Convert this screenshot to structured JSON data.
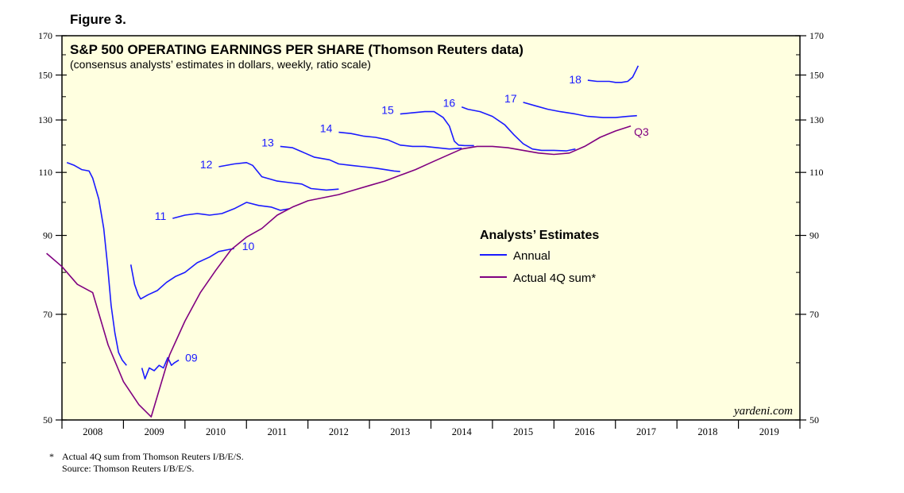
{
  "figure_label": "Figure 3.",
  "footnotes": {
    "note_marker": "*",
    "note": "Actual 4Q sum from Thomson Reuters I/B/E/S.",
    "source": "Source: Thomson Reuters I/B/E/S."
  },
  "colors": {
    "annual": "#1a1aff",
    "actual": "#800080",
    "plot_background": "#ffffe0",
    "axis": "#000000"
  },
  "chart_data": {
    "type": "line",
    "title": "S&P 500 OPERATING EARNINGS PER SHARE (Thomson Reuters data)",
    "subtitle": "(consensus analysts’ estimates in dollars, weekly, ratio scale)",
    "watermark": "yardeni.com",
    "y_scale": "log",
    "ylim": [
      50,
      170
    ],
    "xlim": [
      2008.0,
      2020.0
    ],
    "y_ticks": [
      50,
      70,
      90,
      110,
      130,
      150,
      170
    ],
    "y_tick_labels": [
      "50",
      "70",
      "90",
      "110",
      "130",
      "150",
      "170"
    ],
    "x_tick_labels": [
      "2008",
      "2009",
      "2010",
      "2011",
      "2012",
      "2013",
      "2014",
      "2015",
      "2016",
      "2017",
      "2018",
      "2019"
    ],
    "legend": {
      "title": "Analysts’ Estimates",
      "placement": "center-right",
      "entries": [
        {
          "name": "Annual",
          "series": "annual"
        },
        {
          "name": "Actual 4Q sum*",
          "series": "actual"
        }
      ]
    },
    "series": [
      {
        "name": "09",
        "kind": "annual",
        "label": "09",
        "points": [
          [
            2009.3,
            59.0
          ],
          [
            2009.35,
            57.0
          ],
          [
            2009.42,
            59.0
          ],
          [
            2009.5,
            58.5
          ],
          [
            2009.58,
            59.5
          ],
          [
            2009.65,
            59.0
          ],
          [
            2009.72,
            61.0
          ],
          [
            2009.78,
            59.5
          ],
          [
            2009.83,
            60.0
          ],
          [
            2009.9,
            60.5
          ]
        ]
      },
      {
        "name": "2009",
        "kind": "annual",
        "points": [
          [
            2008.08,
            113.5
          ],
          [
            2008.2,
            112.5
          ],
          [
            2008.32,
            111.0
          ],
          [
            2008.44,
            110.5
          ],
          [
            2008.5,
            108.0
          ],
          [
            2008.6,
            101.0
          ],
          [
            2008.68,
            92.0
          ],
          [
            2008.74,
            82.0
          ],
          [
            2008.8,
            72.0
          ],
          [
            2008.86,
            66.0
          ],
          [
            2008.92,
            62.0
          ],
          [
            2008.98,
            60.5
          ],
          [
            2009.05,
            59.5
          ]
        ]
      },
      {
        "name": "2010",
        "kind": "annual",
        "label": "10",
        "points": [
          [
            2009.12,
            82.0
          ],
          [
            2009.18,
            77.0
          ],
          [
            2009.24,
            74.5
          ],
          [
            2009.28,
            73.5
          ],
          [
            2009.4,
            74.5
          ],
          [
            2009.55,
            75.5
          ],
          [
            2009.7,
            77.5
          ],
          [
            2009.85,
            79.0
          ],
          [
            2010.0,
            80.0
          ],
          [
            2010.2,
            82.5
          ],
          [
            2010.4,
            84.0
          ],
          [
            2010.55,
            85.5
          ],
          [
            2010.7,
            86.0
          ],
          [
            2010.8,
            86.3
          ]
        ]
      },
      {
        "name": "2011",
        "kind": "annual",
        "label": "11",
        "points": [
          [
            2009.8,
            95.0
          ],
          [
            2010.0,
            96.0
          ],
          [
            2010.2,
            96.5
          ],
          [
            2010.4,
            96.0
          ],
          [
            2010.6,
            96.5
          ],
          [
            2010.8,
            98.0
          ],
          [
            2011.0,
            100.0
          ],
          [
            2011.2,
            99.0
          ],
          [
            2011.4,
            98.5
          ],
          [
            2011.55,
            97.5
          ],
          [
            2011.7,
            98.0
          ]
        ]
      },
      {
        "name": "2012",
        "kind": "annual",
        "label": "12",
        "points": [
          [
            2010.55,
            112.0
          ],
          [
            2010.8,
            113.0
          ],
          [
            2011.0,
            113.5
          ],
          [
            2011.1,
            112.5
          ],
          [
            2011.25,
            108.5
          ],
          [
            2011.5,
            107.0
          ],
          [
            2011.7,
            106.5
          ],
          [
            2011.9,
            106.0
          ],
          [
            2012.05,
            104.5
          ],
          [
            2012.3,
            104.0
          ],
          [
            2012.5,
            104.3
          ]
        ]
      },
      {
        "name": "2013",
        "kind": "annual",
        "label": "13",
        "points": [
          [
            2011.55,
            119.5
          ],
          [
            2011.75,
            119.0
          ],
          [
            2011.95,
            117.0
          ],
          [
            2012.1,
            115.5
          ],
          [
            2012.35,
            114.5
          ],
          [
            2012.5,
            113.0
          ],
          [
            2012.7,
            112.5
          ],
          [
            2012.9,
            112.0
          ],
          [
            2013.1,
            111.5
          ],
          [
            2013.25,
            111.0
          ],
          [
            2013.4,
            110.5
          ],
          [
            2013.5,
            110.3
          ]
        ]
      },
      {
        "name": "2014",
        "kind": "annual",
        "label": "14",
        "points": [
          [
            2012.5,
            125.0
          ],
          [
            2012.7,
            124.5
          ],
          [
            2012.9,
            123.5
          ],
          [
            2013.1,
            123.0
          ],
          [
            2013.3,
            122.0
          ],
          [
            2013.5,
            120.0
          ],
          [
            2013.7,
            119.5
          ],
          [
            2013.9,
            119.5
          ],
          [
            2014.1,
            119.0
          ],
          [
            2014.3,
            118.5
          ],
          [
            2014.5,
            118.8
          ]
        ]
      },
      {
        "name": "2015",
        "kind": "annual",
        "label": "15",
        "points": [
          [
            2013.5,
            132.5
          ],
          [
            2013.7,
            133.0
          ],
          [
            2013.9,
            133.5
          ],
          [
            2014.05,
            133.5
          ],
          [
            2014.2,
            131.0
          ],
          [
            2014.3,
            127.5
          ],
          [
            2014.38,
            121.5
          ],
          [
            2014.45,
            120.0
          ],
          [
            2014.55,
            119.8
          ],
          [
            2014.7,
            119.8
          ]
        ]
      },
      {
        "name": "2016",
        "kind": "annual",
        "label": "16",
        "points": [
          [
            2014.5,
            135.5
          ],
          [
            2014.6,
            134.5
          ],
          [
            2014.8,
            133.5
          ],
          [
            2015.0,
            131.5
          ],
          [
            2015.2,
            128.0
          ],
          [
            2015.35,
            124.0
          ],
          [
            2015.5,
            120.5
          ],
          [
            2015.65,
            118.5
          ],
          [
            2015.8,
            118.0
          ],
          [
            2016.0,
            118.0
          ],
          [
            2016.2,
            117.8
          ],
          [
            2016.35,
            118.5
          ]
        ]
      },
      {
        "name": "2017",
        "kind": "annual",
        "label": "17",
        "points": [
          [
            2015.5,
            137.5
          ],
          [
            2015.7,
            136.0
          ],
          [
            2015.9,
            134.5
          ],
          [
            2016.1,
            133.5
          ],
          [
            2016.35,
            132.5
          ],
          [
            2016.55,
            131.5
          ],
          [
            2016.8,
            131.0
          ],
          [
            2017.0,
            131.0
          ],
          [
            2017.2,
            131.5
          ],
          [
            2017.35,
            131.8
          ]
        ]
      },
      {
        "name": "2018",
        "kind": "annual",
        "label": "18",
        "points": [
          [
            2016.55,
            147.5
          ],
          [
            2016.7,
            147.0
          ],
          [
            2016.9,
            147.0
          ],
          [
            2017.0,
            146.5
          ],
          [
            2017.1,
            146.5
          ],
          [
            2017.2,
            147.0
          ],
          [
            2017.28,
            149.0
          ],
          [
            2017.33,
            152.0
          ],
          [
            2017.37,
            154.5
          ]
        ]
      },
      {
        "name": "Actual 4Q sum*",
        "kind": "actual",
        "label": "Q3",
        "points": [
          [
            2007.75,
            85.0
          ],
          [
            2008.0,
            81.5
          ],
          [
            2008.25,
            77.0
          ],
          [
            2008.5,
            75.0
          ],
          [
            2008.75,
            63.5
          ],
          [
            2009.0,
            56.5
          ],
          [
            2009.25,
            52.5
          ],
          [
            2009.45,
            50.5
          ],
          [
            2009.75,
            61.5
          ],
          [
            2010.0,
            68.5
          ],
          [
            2010.25,
            75.0
          ],
          [
            2010.5,
            80.5
          ],
          [
            2010.75,
            86.0
          ],
          [
            2011.0,
            89.5
          ],
          [
            2011.25,
            92.0
          ],
          [
            2011.5,
            96.0
          ],
          [
            2011.75,
            98.5
          ],
          [
            2012.0,
            100.5
          ],
          [
            2012.25,
            101.5
          ],
          [
            2012.5,
            102.5
          ],
          [
            2012.75,
            104.0
          ],
          [
            2013.0,
            105.5
          ],
          [
            2013.25,
            107.0
          ],
          [
            2013.5,
            109.0
          ],
          [
            2013.75,
            111.0
          ],
          [
            2014.0,
            113.5
          ],
          [
            2014.25,
            116.0
          ],
          [
            2014.5,
            118.5
          ],
          [
            2014.75,
            119.5
          ],
          [
            2015.0,
            119.5
          ],
          [
            2015.25,
            119.0
          ],
          [
            2015.5,
            118.0
          ],
          [
            2015.75,
            117.0
          ],
          [
            2016.0,
            116.5
          ],
          [
            2016.25,
            117.0
          ],
          [
            2016.5,
            119.5
          ],
          [
            2016.75,
            123.0
          ],
          [
            2017.0,
            125.5
          ],
          [
            2017.25,
            127.5
          ]
        ]
      }
    ]
  }
}
